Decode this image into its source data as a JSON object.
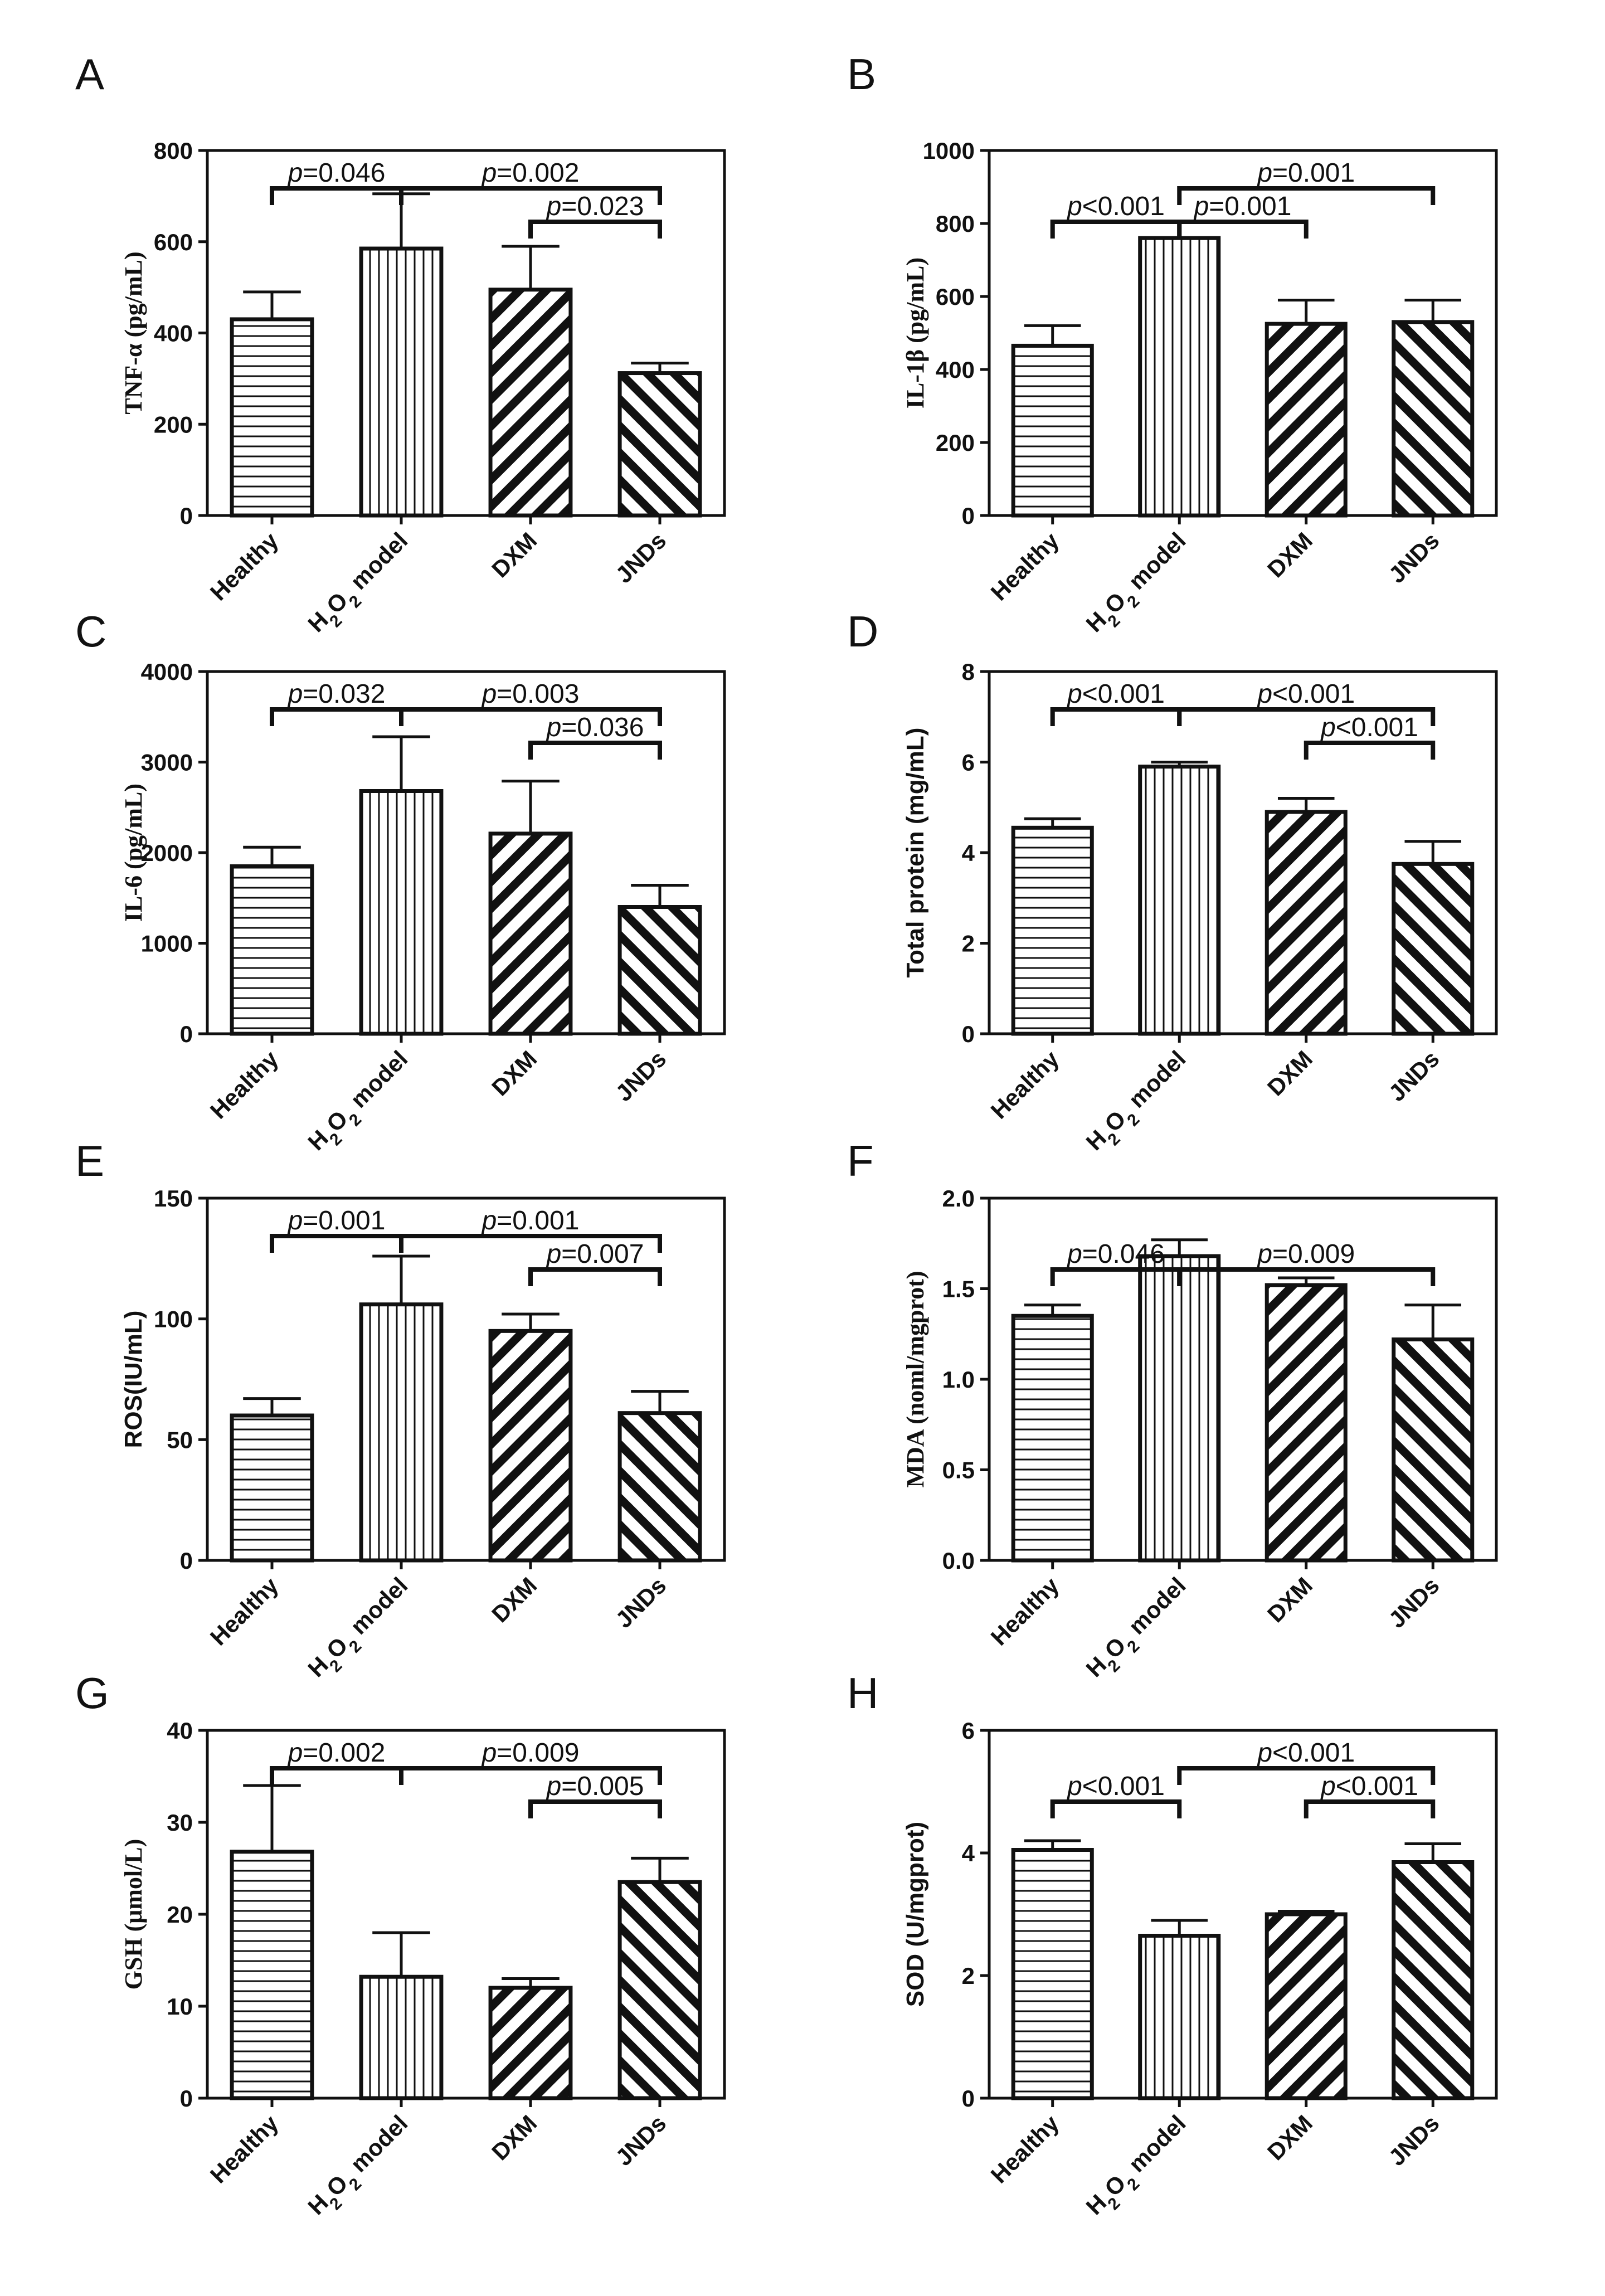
{
  "chart_data": [
    {
      "panel": "A",
      "type": "bar",
      "ylabel": "TNF-α (pg/mL)",
      "ylabel_font": "serif",
      "ylim": [
        0,
        800
      ],
      "yticks": [
        0,
        200,
        400,
        600,
        800
      ],
      "categories": [
        "Healthy",
        "H2O2 model",
        "DXM",
        "JNDs"
      ],
      "values": [
        430,
        585,
        495,
        312
      ],
      "errors": [
        60,
        120,
        95,
        22
      ],
      "comparisons": [
        {
          "from": 0,
          "to": 1,
          "label": "p=0.046",
          "level": 1
        },
        {
          "from": 1,
          "to": 3,
          "label": "p=0.002",
          "level": 1
        },
        {
          "from": 2,
          "to": 3,
          "label": "p=0.023",
          "level": 0
        }
      ]
    },
    {
      "panel": "B",
      "type": "bar",
      "ylabel": "IL-1β (pg/mL)",
      "ylabel_font": "serif",
      "ylim": [
        0,
        1000
      ],
      "yticks": [
        0,
        200,
        400,
        600,
        800,
        1000
      ],
      "categories": [
        "Healthy",
        "H2O2 model",
        "DXM",
        "JNDs"
      ],
      "values": [
        465,
        760,
        525,
        530
      ],
      "errors": [
        55,
        45,
        65,
        60
      ],
      "comparisons": [
        {
          "from": 0,
          "to": 1,
          "label": "p<0.001",
          "level": 0
        },
        {
          "from": 1,
          "to": 2,
          "label": "p=0.001",
          "level": 0
        },
        {
          "from": 1,
          "to": 3,
          "label": "p=0.001",
          "level": 1
        }
      ]
    },
    {
      "panel": "C",
      "type": "bar",
      "ylabel": "IL-6 (pg/mL)",
      "ylabel_font": "serif",
      "ylim": [
        0,
        4000
      ],
      "yticks": [
        0,
        1000,
        2000,
        3000,
        4000
      ],
      "categories": [
        "Healthy",
        "H2O2 model",
        "DXM",
        "JNDs"
      ],
      "values": [
        1850,
        2680,
        2210,
        1400
      ],
      "errors": [
        210,
        600,
        580,
        240
      ],
      "comparisons": [
        {
          "from": 0,
          "to": 1,
          "label": "p=0.032",
          "level": 1
        },
        {
          "from": 1,
          "to": 3,
          "label": "p=0.003",
          "level": 1
        },
        {
          "from": 2,
          "to": 3,
          "label": "p=0.036",
          "level": 0
        }
      ]
    },
    {
      "panel": "D",
      "type": "bar",
      "ylabel": "Total protein (mg/mL)",
      "ylabel_font": "sans",
      "ylim": [
        0,
        8
      ],
      "yticks": [
        0,
        2,
        4,
        6,
        8
      ],
      "categories": [
        "Healthy",
        "H2O2 model",
        "DXM",
        "JNDs"
      ],
      "values": [
        4.55,
        5.9,
        4.9,
        3.75
      ],
      "errors": [
        0.2,
        0.1,
        0.3,
        0.5
      ],
      "comparisons": [
        {
          "from": 0,
          "to": 1,
          "label": "p<0.001",
          "level": 1
        },
        {
          "from": 1,
          "to": 3,
          "label": "p<0.001",
          "level": 1
        },
        {
          "from": 2,
          "to": 3,
          "label": "p<0.001",
          "level": 0
        }
      ]
    },
    {
      "panel": "E",
      "type": "bar",
      "ylabel": "ROS(IU/mL)",
      "ylabel_font": "sans",
      "ylim": [
        0,
        150
      ],
      "yticks": [
        0,
        50,
        100,
        150
      ],
      "categories": [
        "Healthy",
        "H2O2 model",
        "DXM",
        "JNDs"
      ],
      "values": [
        60,
        106,
        95,
        61
      ],
      "errors": [
        7,
        20,
        7,
        9
      ],
      "comparisons": [
        {
          "from": 0,
          "to": 1,
          "label": "p=0.001",
          "level": 1
        },
        {
          "from": 1,
          "to": 3,
          "label": "p=0.001",
          "level": 1
        },
        {
          "from": 2,
          "to": 3,
          "label": "p=0.007",
          "level": 0
        }
      ]
    },
    {
      "panel": "F",
      "type": "bar",
      "ylabel": "MDA (noml/mgprot)",
      "ylabel_font": "serif",
      "ylim": [
        0,
        2.0
      ],
      "yticks": [
        0.0,
        0.5,
        1.0,
        1.5,
        2.0
      ],
      "categories": [
        "Healthy",
        "H2O2 model",
        "DXM",
        "JNDs"
      ],
      "values": [
        1.35,
        1.68,
        1.52,
        1.22
      ],
      "errors": [
        0.06,
        0.09,
        0.04,
        0.19
      ],
      "comparisons": [
        {
          "from": 0,
          "to": 1,
          "label": "p=0.046",
          "level": 0
        },
        {
          "from": 1,
          "to": 3,
          "label": "p=0.009",
          "level": 0
        }
      ]
    },
    {
      "panel": "G",
      "type": "bar",
      "ylabel": "GSH (μmol/L)",
      "ylabel_font": "serif",
      "ylim": [
        0,
        40
      ],
      "yticks": [
        0,
        10,
        20,
        30,
        40
      ],
      "categories": [
        "Healthy",
        "H2O2 model",
        "DXM",
        "JNDs"
      ],
      "values": [
        26.8,
        13.2,
        12.0,
        23.5
      ],
      "errors": [
        7.2,
        4.8,
        1.0,
        2.6
      ],
      "comparisons": [
        {
          "from": 0,
          "to": 1,
          "label": "p=0.002",
          "level": 1
        },
        {
          "from": 1,
          "to": 3,
          "label": "p=0.009",
          "level": 1
        },
        {
          "from": 2,
          "to": 3,
          "label": "p=0.005",
          "level": 0
        }
      ]
    },
    {
      "panel": "H",
      "type": "bar",
      "ylabel": "SOD (U/mgprot)",
      "ylabel_font": "sans",
      "ylim": [
        0,
        6
      ],
      "yticks": [
        0,
        2,
        4,
        6
      ],
      "categories": [
        "Healthy",
        "H2O2 model",
        "DXM",
        "JNDs"
      ],
      "values": [
        4.05,
        2.65,
        3.0,
        3.85
      ],
      "errors": [
        0.15,
        0.25,
        0.05,
        0.3
      ],
      "comparisons": [
        {
          "from": 0,
          "to": 1,
          "label": "p<0.001",
          "level": 0
        },
        {
          "from": 1,
          "to": 3,
          "label": "p<0.001",
          "level": 1
        },
        {
          "from": 2,
          "to": 3,
          "label": "p<0.001",
          "level": 0
        }
      ]
    }
  ]
}
